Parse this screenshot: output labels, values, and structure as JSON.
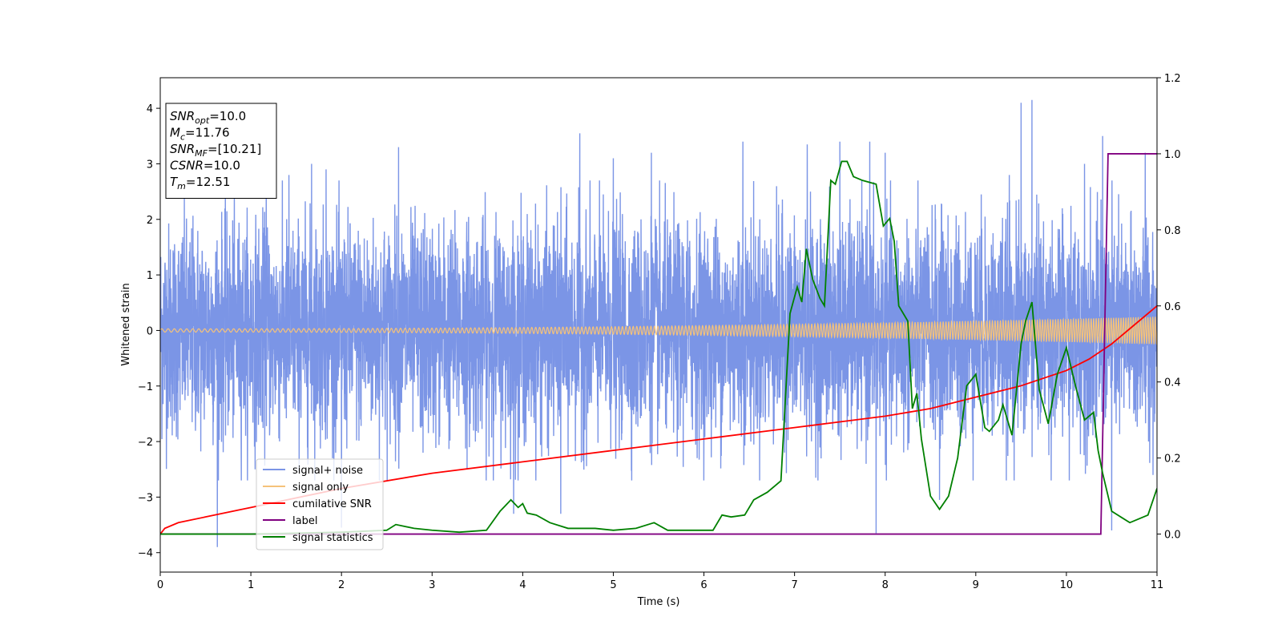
{
  "chart_data": {
    "type": "line",
    "xlabel": "Time (s)",
    "ylabel": "Whitened strain",
    "xlim": [
      0,
      11
    ],
    "ylim_left": [
      -4.35,
      4.55
    ],
    "ylim_right": [
      -0.1,
      1.2
    ],
    "x_ticks": [
      "0",
      "1",
      "2",
      "3",
      "4",
      "5",
      "6",
      "7",
      "8",
      "9",
      "10",
      "11"
    ],
    "y_ticks_left": [
      "−4",
      "−3",
      "−2",
      "−1",
      "0",
      "1",
      "2",
      "3",
      "4"
    ],
    "y_ticks_right": [
      "0.0",
      "0.2",
      "0.4",
      "0.6",
      "0.8",
      "1.0",
      "1.2"
    ],
    "legend": {
      "placement": "lower-left",
      "entries": [
        {
          "label": "signal+ noise",
          "color": "#7b95e6"
        },
        {
          "label": "signal only",
          "color": "#f5c27a"
        },
        {
          "label": "cumilative SNR",
          "color": "#ff0000"
        },
        {
          "label": "label",
          "color": "#800080"
        },
        {
          "label": "signal statistics",
          "color": "#008000"
        }
      ]
    },
    "info_box": {
      "placement": "top-left",
      "lines": [
        {
          "base": "SNR",
          "sub": "opt",
          "value": "=10.0"
        },
        {
          "base": "M",
          "sub": "c",
          "value": "=11.76"
        },
        {
          "base": "SNR",
          "sub": "MF",
          "value": "=[10.21]"
        },
        {
          "base": "CSNR",
          "sub": "",
          "value": "=10.0"
        },
        {
          "base": "T",
          "sub": "m",
          "value": "=12.51"
        }
      ]
    },
    "series": [
      {
        "name": "signal+ noise",
        "axis": "left",
        "color": "#7b95e6",
        "noise_band": [
          -2.0,
          2.2
        ],
        "peak_values": [
          [
            0.63,
            -3.9
          ],
          [
            1.17,
            3.1
          ],
          [
            1.42,
            2.8
          ],
          [
            1.67,
            3.0
          ],
          [
            1.83,
            2.9
          ],
          [
            2.0,
            -3.55
          ],
          [
            2.63,
            3.3
          ],
          [
            2.9,
            -2.2
          ],
          [
            3.9,
            -3.3
          ],
          [
            4.42,
            -3.3
          ],
          [
            4.63,
            3.55
          ],
          [
            5.0,
            3.1
          ],
          [
            5.42,
            3.2
          ],
          [
            6.43,
            3.4
          ],
          [
            7.14,
            3.35
          ],
          [
            7.5,
            3.4
          ],
          [
            7.83,
            3.4
          ],
          [
            7.9,
            -3.65
          ],
          [
            8.0,
            3.2
          ],
          [
            8.6,
            -3.05
          ],
          [
            9.37,
            2.8
          ],
          [
            9.5,
            4.1
          ],
          [
            9.62,
            4.15
          ],
          [
            10.2,
            3.0
          ],
          [
            10.4,
            3.5
          ],
          [
            10.5,
            -3.6
          ],
          [
            10.87,
            3.2
          ]
        ]
      },
      {
        "name": "signal only",
        "axis": "left",
        "color": "#f5c27a",
        "amplitude_start": 0.03,
        "amplitude_end": 0.25,
        "cycles": 285
      },
      {
        "name": "cumilative SNR",
        "axis": "right",
        "color": "#ff0000",
        "x": [
          0,
          0.05,
          0.2,
          0.5,
          1,
          2,
          3,
          4,
          5,
          6,
          7,
          7.5,
          8,
          8.5,
          9,
          9.5,
          10,
          10.25,
          10.5,
          10.75,
          11
        ],
        "y": [
          0.0,
          0.015,
          0.03,
          0.045,
          0.07,
          0.12,
          0.16,
          0.19,
          0.22,
          0.25,
          0.28,
          0.295,
          0.31,
          0.33,
          0.36,
          0.39,
          0.43,
          0.46,
          0.5,
          0.55,
          0.6
        ]
      },
      {
        "name": "label",
        "axis": "right",
        "color": "#800080",
        "x": [
          0,
          10.38,
          10.46,
          11
        ],
        "y": [
          0.0,
          0.0,
          1.0,
          1.0
        ]
      },
      {
        "name": "signal statistics",
        "axis": "right",
        "color": "#008000",
        "x": [
          0,
          1,
          2,
          2.5,
          2.6,
          2.8,
          3,
          3.3,
          3.6,
          3.75,
          3.87,
          3.95,
          4.0,
          4.05,
          4.15,
          4.3,
          4.5,
          4.8,
          5.0,
          5.25,
          5.45,
          5.6,
          5.8,
          6.0,
          6.1,
          6.2,
          6.3,
          6.45,
          6.55,
          6.7,
          6.85,
          6.95,
          7.03,
          7.08,
          7.13,
          7.2,
          7.28,
          7.33,
          7.4,
          7.45,
          7.52,
          7.58,
          7.65,
          7.75,
          7.9,
          7.98,
          8.05,
          8.1,
          8.15,
          8.25,
          8.3,
          8.35,
          8.4,
          8.5,
          8.6,
          8.7,
          8.8,
          8.9,
          9.0,
          9.1,
          9.15,
          9.25,
          9.3,
          9.35,
          9.4,
          9.5,
          9.55,
          9.62,
          9.7,
          9.8,
          9.9,
          10.0,
          10.1,
          10.2,
          10.3,
          10.35,
          10.4,
          10.5,
          10.6,
          10.7,
          10.8,
          10.9,
          11.0
        ],
        "y": [
          0.0,
          0.0,
          0.005,
          0.01,
          0.025,
          0.015,
          0.01,
          0.005,
          0.01,
          0.06,
          0.09,
          0.07,
          0.08,
          0.055,
          0.05,
          0.03,
          0.015,
          0.015,
          0.01,
          0.015,
          0.03,
          0.01,
          0.01,
          0.01,
          0.01,
          0.05,
          0.045,
          0.05,
          0.09,
          0.11,
          0.14,
          0.58,
          0.65,
          0.61,
          0.75,
          0.67,
          0.62,
          0.6,
          0.93,
          0.92,
          0.98,
          0.98,
          0.94,
          0.93,
          0.92,
          0.81,
          0.83,
          0.77,
          0.6,
          0.56,
          0.33,
          0.37,
          0.25,
          0.1,
          0.065,
          0.1,
          0.2,
          0.39,
          0.42,
          0.28,
          0.27,
          0.3,
          0.34,
          0.3,
          0.26,
          0.5,
          0.56,
          0.61,
          0.38,
          0.29,
          0.42,
          0.49,
          0.39,
          0.3,
          0.32,
          0.22,
          0.16,
          0.06,
          0.045,
          0.03,
          0.04,
          0.05,
          0.12
        ]
      }
    ]
  }
}
